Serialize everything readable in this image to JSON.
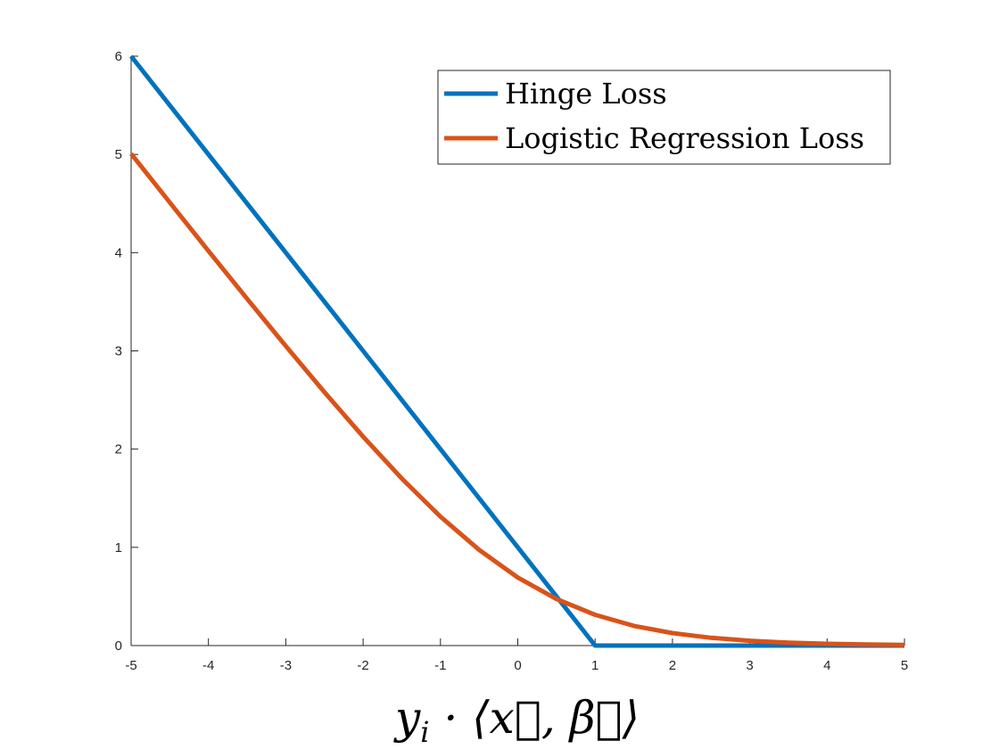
{
  "chart_data": {
    "type": "line",
    "title": "",
    "xlabel": "y_i · ⟨x⃗, β⃗⟩",
    "ylabel": "",
    "xlim": [
      -5,
      5
    ],
    "ylim": [
      0,
      6
    ],
    "grid": false,
    "legend_placement": "top-right",
    "x_ticks": [
      "-5",
      "-4",
      "-3",
      "-2",
      "-1",
      "0",
      "1",
      "2",
      "3",
      "4",
      "5"
    ],
    "y_ticks": [
      "0",
      "1",
      "2",
      "3",
      "4",
      "5",
      "6"
    ],
    "series": [
      {
        "name": "Hinge Loss",
        "color": "#0072BD",
        "x": [
          -5,
          -4,
          -3,
          -2,
          -1,
          0,
          1,
          2,
          3,
          4,
          5
        ],
        "y": [
          6,
          5,
          4,
          3,
          2,
          1,
          0,
          0,
          0,
          0,
          0
        ]
      },
      {
        "name": "Logistic Regression Loss",
        "color": "#D95319",
        "x": [
          -5,
          -4.5,
          -4,
          -3.5,
          -3,
          -2.5,
          -2,
          -1.5,
          -1,
          -0.5,
          0,
          0.5,
          1,
          1.5,
          2,
          2.5,
          3,
          3.5,
          4,
          4.5,
          5
        ],
        "y": [
          5.007,
          4.511,
          4.018,
          3.53,
          3.049,
          2.579,
          2.127,
          1.701,
          1.313,
          0.974,
          0.693,
          0.474,
          0.313,
          0.201,
          0.127,
          0.079,
          0.049,
          0.03,
          0.018,
          0.011,
          0.007
        ]
      }
    ]
  }
}
